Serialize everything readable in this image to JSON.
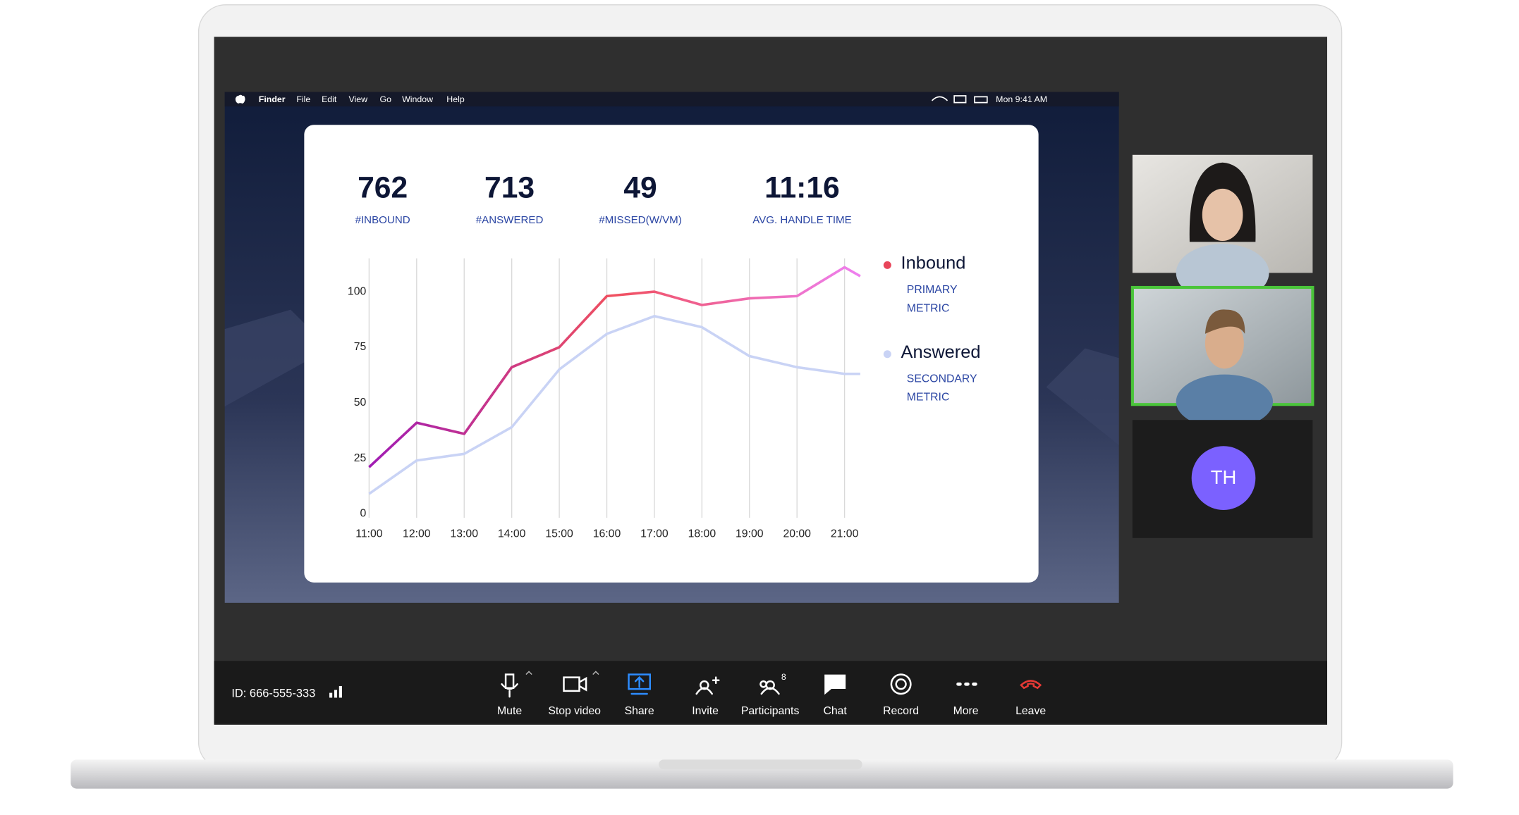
{
  "menubar": {
    "items": [
      "Finder",
      "File",
      "Edit",
      "View",
      "Go",
      "Window",
      "Help"
    ],
    "clock": "Mon 9:41 AM"
  },
  "stats": [
    {
      "value": "762",
      "label": "#INBOUND"
    },
    {
      "value": "713",
      "label": "#ANSWERED"
    },
    {
      "value": "49",
      "label": "#MISSED(W/VM)"
    },
    {
      "value": "11:16",
      "label": "AVG. HANDLE TIME"
    }
  ],
  "chart_data": {
    "type": "line",
    "x": [
      11,
      12,
      13,
      14,
      15,
      16,
      17,
      18,
      19,
      20,
      21,
      21.33
    ],
    "xlim": [
      11,
      21.33
    ],
    "xticks": [
      {
        "value": 11,
        "label": "11:00"
      },
      {
        "value": 12,
        "label": "12:00"
      },
      {
        "value": 13,
        "label": "13:00"
      },
      {
        "value": 14,
        "label": "14:00"
      },
      {
        "value": 15,
        "label": "15:00"
      },
      {
        "value": 16,
        "label": "16:00"
      },
      {
        "value": 17,
        "label": "17:00"
      },
      {
        "value": 18,
        "label": "18:00"
      },
      {
        "value": 19,
        "label": "19:00"
      },
      {
        "value": 20,
        "label": "20:00"
      },
      {
        "value": 21,
        "label": "21:00"
      }
    ],
    "ylim": [
      0,
      115
    ],
    "yticks": [
      0,
      25,
      50,
      75,
      100
    ],
    "grid": "x",
    "series": [
      {
        "name": "Inbound",
        "note": "PRIMARY METRIC",
        "color": "#e8455a",
        "gradient": [
          "#a01cb4",
          "#f0505f",
          "#ee80f0"
        ],
        "values": [
          21,
          41,
          36,
          66,
          75,
          98,
          100,
          94,
          97,
          98,
          111,
          107
        ]
      },
      {
        "name": "Answered",
        "note": "SECONDARY METRIC",
        "color": "#c9d3f5",
        "values": [
          9,
          24,
          27,
          39,
          65,
          81,
          89,
          84,
          71,
          66,
          63,
          63
        ]
      }
    ]
  },
  "participants": {
    "avatar_initials": "TH"
  },
  "toolbar": {
    "meeting_id": "ID: 666-555-333",
    "buttons": [
      "Mute",
      "Stop video",
      "Share",
      "Invite",
      "Participants",
      "Chat",
      "Record",
      "More",
      "Leave"
    ],
    "participants_count": "8"
  }
}
